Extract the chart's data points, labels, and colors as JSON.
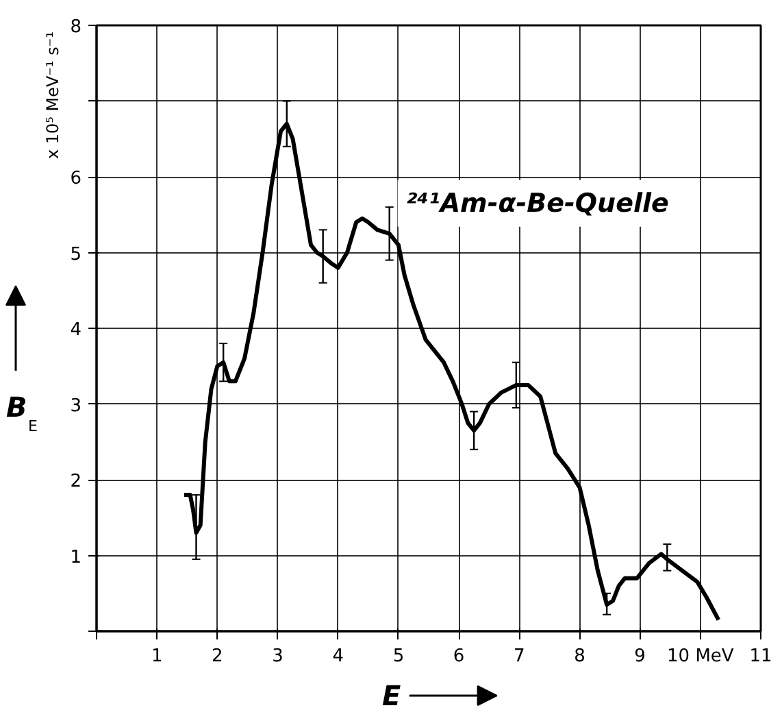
{
  "chart_data": {
    "type": "line",
    "xlabel": "E",
    "ylabel": "B$_{E}$",
    "annotations": [
      "x 10⁵ MeV⁻¹ s⁻¹",
      "²⁴¹Am-α-Be-Quelle"
    ],
    "xlim": [
      0,
      11
    ],
    "ylim": [
      0,
      8
    ],
    "xticks": [
      {
        "value": 0,
        "label": null
      },
      1,
      2,
      3,
      4,
      5,
      6,
      7,
      8,
      9,
      {
        "value": 10,
        "label": "10 MeV"
      },
      11
    ],
    "yticks": [
      {
        "value": 0,
        "label": null
      },
      1,
      2,
      3,
      4,
      5,
      6,
      {
        "value": 7,
        "label": null
      },
      8
    ],
    "grid": true,
    "marker": "none",
    "line_style": "solid",
    "series": [
      {
        "color": "#000000",
        "x": [
          1.45,
          1.55,
          1.6,
          1.65,
          1.72,
          1.8,
          1.9,
          2.0,
          2.1,
          2.2,
          2.3,
          2.45,
          2.6,
          2.75,
          2.9,
          3.05,
          3.15,
          3.25,
          3.4,
          3.55,
          3.65,
          3.75,
          3.9,
          4.0,
          4.15,
          4.3,
          4.4,
          4.5,
          4.65,
          4.85,
          5.0,
          5.1,
          5.25,
          5.45,
          5.6,
          5.75,
          5.9,
          6.05,
          6.15,
          6.25,
          6.35,
          6.5,
          6.7,
          6.95,
          7.15,
          7.35,
          7.45,
          7.6,
          7.8,
          8.0,
          8.15,
          8.3,
          8.45,
          8.55,
          8.65,
          8.75,
          8.95,
          9.15,
          9.35,
          9.45,
          9.7,
          9.95,
          10.1,
          10.3
        ],
        "values": [
          1.8,
          1.8,
          1.6,
          1.3,
          1.4,
          2.5,
          3.2,
          3.5,
          3.55,
          3.3,
          3.3,
          3.6,
          4.2,
          5.0,
          5.9,
          6.6,
          6.7,
          6.5,
          5.8,
          5.1,
          5.0,
          4.95,
          4.85,
          4.8,
          5.0,
          5.4,
          5.45,
          5.4,
          5.3,
          5.25,
          5.1,
          4.7,
          4.3,
          3.85,
          3.7,
          3.55,
          3.3,
          3.0,
          2.75,
          2.65,
          2.75,
          3.0,
          3.15,
          3.25,
          3.25,
          3.1,
          2.8,
          2.35,
          2.15,
          1.9,
          1.4,
          0.8,
          0.35,
          0.4,
          0.6,
          0.7,
          0.7,
          0.9,
          1.02,
          0.95,
          0.8,
          0.65,
          0.45,
          0.15
        ],
        "errors": [
          null,
          null,
          null,
          [
            0.95,
            1.8
          ],
          null,
          null,
          null,
          null,
          [
            3.3,
            3.8
          ],
          null,
          null,
          null,
          null,
          null,
          null,
          null,
          [
            6.4,
            7.0
          ],
          null,
          null,
          null,
          null,
          [
            4.6,
            5.3
          ],
          null,
          null,
          null,
          null,
          null,
          null,
          null,
          [
            4.9,
            5.6
          ],
          null,
          null,
          null,
          null,
          null,
          null,
          null,
          null,
          null,
          [
            2.4,
            2.9
          ],
          null,
          null,
          null,
          [
            2.95,
            3.55
          ],
          null,
          null,
          null,
          null,
          null,
          null,
          null,
          null,
          [
            0.22,
            0.5
          ],
          null,
          null,
          null,
          null,
          null,
          null,
          [
            0.8,
            1.15
          ],
          null,
          null,
          null,
          null
        ]
      }
    ]
  }
}
